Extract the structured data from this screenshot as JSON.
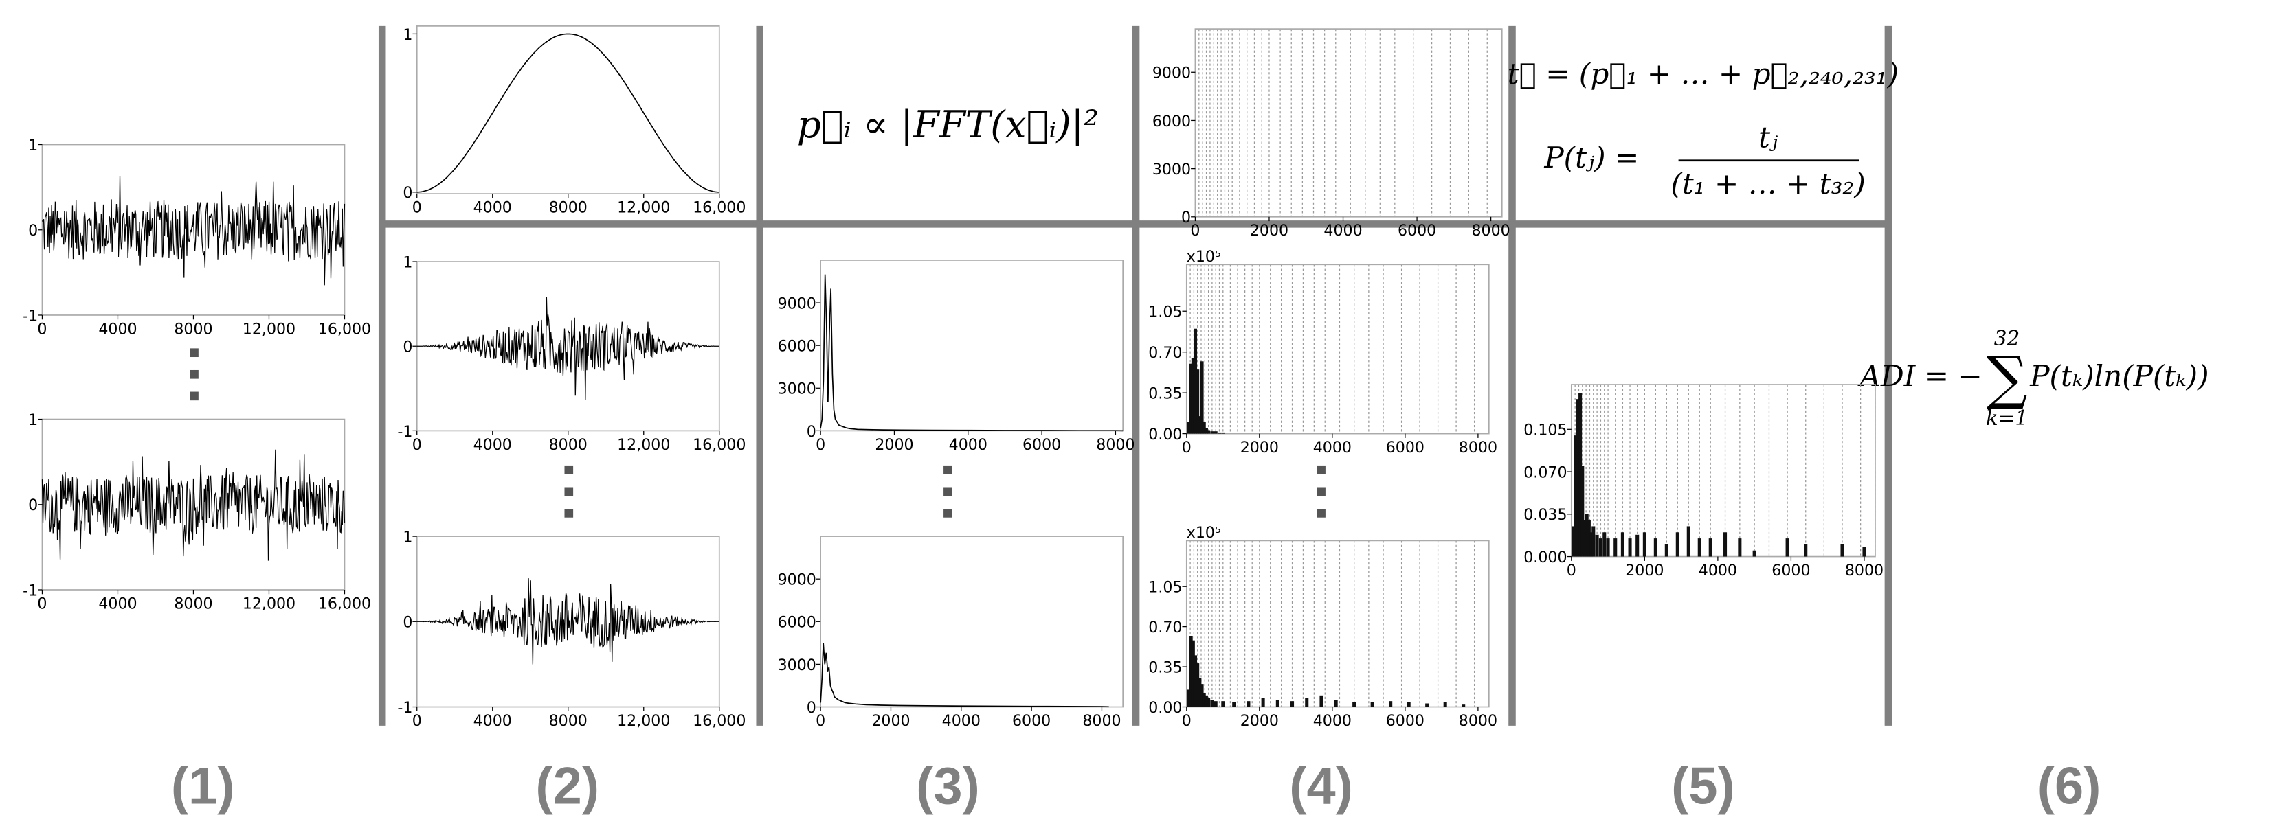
{
  "panels": [
    {
      "label": "(1)",
      "plots": [
        {
          "kind": "signal",
          "xlim": [
            0,
            16000
          ],
          "ylim": [
            -1,
            1
          ],
          "xticks": [
            0,
            4000,
            8000,
            {
              "value": 12000,
              "label": "12,000"
            },
            {
              "value": 16000,
              "label": "16,000"
            }
          ],
          "yticks": [
            -1,
            0,
            1
          ]
        },
        {
          "kind": "signal",
          "xlim": [
            0,
            16000
          ],
          "ylim": [
            -1,
            1
          ],
          "xticks": [
            0,
            4000,
            8000,
            {
              "value": 12000,
              "label": "12,000"
            },
            {
              "value": 16000,
              "label": "16,000"
            }
          ],
          "yticks": [
            -1,
            0,
            1
          ]
        }
      ]
    },
    {
      "label": "(2)",
      "plots": [
        {
          "kind": "window",
          "xlim": [
            0,
            16000
          ],
          "ylim": [
            -0.01,
            1.05
          ],
          "xticks": [
            0,
            4000,
            8000,
            {
              "value": 12000,
              "label": "12,000"
            },
            {
              "value": 16000,
              "label": "16,000"
            }
          ],
          "yticks": [
            0,
            1
          ]
        },
        {
          "kind": "windowed",
          "xlim": [
            0,
            16000
          ],
          "ylim": [
            -1,
            1
          ],
          "xticks": [
            0,
            4000,
            8000,
            {
              "value": 12000,
              "label": "12,000"
            },
            {
              "value": 16000,
              "label": "16,000"
            }
          ],
          "yticks": [
            -1,
            0,
            1
          ]
        },
        {
          "kind": "windowed",
          "xlim": [
            0,
            16000
          ],
          "ylim": [
            -1,
            1
          ],
          "xticks": [
            0,
            4000,
            8000,
            {
              "value": 12000,
              "label": "12,000"
            },
            {
              "value": 16000,
              "label": "16,000"
            }
          ],
          "yticks": [
            -1,
            0,
            1
          ]
        }
      ]
    },
    {
      "label": "(3)",
      "formula": "p⃗ᵢ ∝ |FFT(x⃗ᵢ)|²",
      "plots": [
        {
          "kind": "spectrum",
          "xlim": [
            0,
            8200
          ],
          "ylim": [
            0,
            12000
          ],
          "xticks": [
            0,
            2000,
            4000,
            6000,
            8000
          ],
          "yticks": [
            0,
            3000,
            6000,
            9000
          ],
          "x": [
            0,
            40,
            80,
            120,
            160,
            200,
            240,
            280,
            320,
            360,
            400,
            450,
            500,
            600,
            700,
            800,
            1000,
            1300,
            1700,
            2200,
            3000,
            4000,
            5000,
            6000,
            7000,
            8000,
            8200
          ],
          "values": [
            200,
            800,
            3500,
            11000,
            7500,
            2000,
            7000,
            10000,
            4000,
            1500,
            800,
            600,
            400,
            300,
            200,
            150,
            100,
            80,
            60,
            50,
            40,
            30,
            20,
            20,
            10,
            10,
            5
          ]
        },
        {
          "kind": "spectrum",
          "xlim": [
            0,
            8600
          ],
          "ylim": [
            0,
            12000
          ],
          "xticks": [
            0,
            2000,
            4000,
            6000,
            8000
          ],
          "yticks": [
            0,
            3000,
            6000,
            9000
          ],
          "x": [
            0,
            40,
            80,
            120,
            160,
            200,
            240,
            280,
            320,
            360,
            400,
            450,
            500,
            600,
            700,
            800,
            1000,
            1300,
            1700,
            2200,
            3000,
            4000,
            5000,
            6000,
            7000,
            8000,
            8200
          ],
          "values": [
            300,
            2000,
            4500,
            3000,
            3800,
            2500,
            2800,
            1500,
            1200,
            1000,
            700,
            600,
            500,
            400,
            300,
            250,
            200,
            150,
            120,
            100,
            80,
            60,
            50,
            40,
            30,
            20,
            10
          ]
        }
      ]
    },
    {
      "label": "(4)",
      "plots": [
        {
          "kind": "bands",
          "xlim": [
            0,
            8300
          ],
          "ylim": [
            0,
            11700
          ],
          "xticks": [
            0,
            2000,
            4000,
            6000,
            8000
          ],
          "yticks": [
            0,
            3000,
            6000,
            9000
          ],
          "band_edges": [
            0,
            100,
            200,
            300,
            400,
            500,
            600,
            700,
            800,
            900,
            1000,
            1200,
            1400,
            1600,
            1800,
            2000,
            2300,
            2600,
            2900,
            3200,
            3500,
            3800,
            4200,
            4600,
            5000,
            5400,
            5900,
            6400,
            6900,
            7400,
            7900,
            8300
          ]
        },
        {
          "kind": "bars",
          "multiplier": "x10⁵",
          "xlim": [
            0,
            8300
          ],
          "ylim": [
            0,
            1.45
          ],
          "xticks": [
            0,
            2000,
            4000,
            6000,
            8000
          ],
          "yticks": [
            {
              "value": 0,
              "label": "0.00"
            },
            0.35,
            {
              "value": 0.7,
              "label": "0.70"
            },
            1.05
          ],
          "band_edges": [
            0,
            100,
            200,
            300,
            400,
            500,
            600,
            700,
            800,
            900,
            1000,
            1200,
            1400,
            1600,
            1800,
            2000,
            2300,
            2600,
            2900,
            3200,
            3500,
            3800,
            4200,
            4600,
            5000,
            5400,
            5900,
            6400,
            6900,
            7400,
            7900,
            8300
          ],
          "x": [
            60,
            120,
            180,
            240,
            300,
            360,
            420,
            480,
            540,
            600,
            700,
            800,
            900,
            1000
          ],
          "values": [
            0.1,
            0.6,
            0.65,
            0.9,
            0.55,
            0.15,
            0.62,
            0.1,
            0.05,
            0.03,
            0.02,
            0.02,
            0.01,
            0.01
          ]
        },
        {
          "kind": "bars",
          "multiplier": "x10⁵",
          "xlim": [
            0,
            8300
          ],
          "ylim": [
            0,
            1.45
          ],
          "xticks": [
            0,
            2000,
            4000,
            6000,
            8000
          ],
          "yticks": [
            {
              "value": 0,
              "label": "0.00"
            },
            0.35,
            {
              "value": 0.7,
              "label": "0.70"
            },
            1.05
          ],
          "band_edges": [
            0,
            100,
            200,
            300,
            400,
            500,
            600,
            700,
            800,
            900,
            1000,
            1200,
            1400,
            1600,
            1800,
            2000,
            2300,
            2600,
            2900,
            3200,
            3500,
            3800,
            4200,
            4600,
            5000,
            5400,
            5900,
            6400,
            6900,
            7400,
            7900,
            8300
          ],
          "x": [
            60,
            120,
            180,
            240,
            300,
            360,
            420,
            480,
            540,
            600,
            700,
            800,
            1000,
            1300,
            1700,
            2100,
            2500,
            2900,
            3300,
            3700,
            4100,
            4600,
            5100,
            5600,
            6100,
            6600,
            7100,
            7600
          ],
          "values": [
            0.15,
            0.62,
            0.58,
            0.45,
            0.38,
            0.25,
            0.2,
            0.12,
            0.1,
            0.08,
            0.06,
            0.05,
            0.05,
            0.04,
            0.05,
            0.08,
            0.06,
            0.05,
            0.08,
            0.1,
            0.06,
            0.04,
            0.04,
            0.05,
            0.04,
            0.03,
            0.04,
            0.02
          ]
        }
      ]
    },
    {
      "label": "(5)",
      "formula_sum": "t⃗ = (p⃗₁ + … + p⃗₂,₂₄₀,₂₃₁)",
      "formula_lhs": "P(tⱼ) =",
      "formula_num": "tⱼ",
      "formula_den": "(t₁ + … + t₃₂)",
      "plots": [
        {
          "kind": "bars",
          "xlim": [
            0,
            8300
          ],
          "ylim": [
            0,
            0.142
          ],
          "xticks": [
            0,
            2000,
            4000,
            6000,
            8000
          ],
          "yticks": [
            {
              "value": 0,
              "label": "0.000"
            },
            0.035,
            {
              "value": 0.07,
              "label": "0.070"
            },
            0.105
          ],
          "band_edges": [
            0,
            100,
            200,
            300,
            400,
            500,
            600,
            700,
            800,
            900,
            1000,
            1200,
            1400,
            1600,
            1800,
            2000,
            2300,
            2600,
            2900,
            3200,
            3500,
            3800,
            4200,
            4600,
            5000,
            5400,
            5900,
            6400,
            6900,
            7400,
            7900,
            8300
          ],
          "x": [
            60,
            120,
            180,
            240,
            300,
            360,
            420,
            480,
            540,
            600,
            700,
            800,
            900,
            1000,
            1200,
            1400,
            1600,
            1800,
            2000,
            2300,
            2600,
            2900,
            3200,
            3500,
            3800,
            4200,
            4600,
            5000,
            5900,
            6400,
            7400,
            8000
          ],
          "values": [
            0.025,
            0.1,
            0.13,
            0.135,
            0.075,
            0.03,
            0.035,
            0.03,
            0.02,
            0.025,
            0.018,
            0.015,
            0.02,
            0.015,
            0.015,
            0.02,
            0.015,
            0.018,
            0.02,
            0.015,
            0.01,
            0.02,
            0.025,
            0.015,
            0.015,
            0.02,
            0.015,
            0.005,
            0.015,
            0.01,
            0.01,
            0.008
          ]
        }
      ]
    },
    {
      "label": "(6)",
      "formula_lhs": "ADI = −",
      "sum_top": "32",
      "sum_sign": "∑",
      "sum_bottom": "k=1",
      "formula_rhs": "P(tₖ)ln(P(tₖ))"
    }
  ]
}
